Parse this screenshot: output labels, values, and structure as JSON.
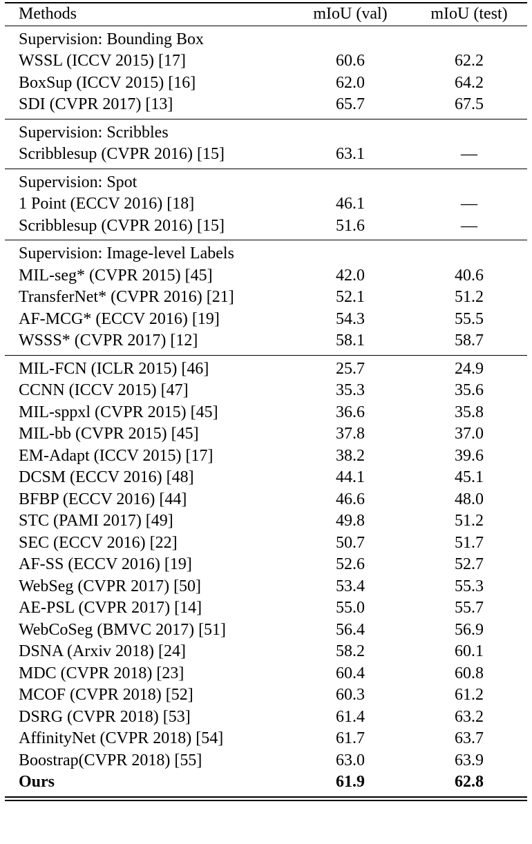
{
  "header": {
    "method": "Methods",
    "val": "mIoU (val)",
    "test": "mIoU (test)"
  },
  "sections": [
    {
      "title": "Supervision: Bounding Box",
      "rows": [
        {
          "method": "WSSL (ICCV 2015) [17]",
          "val": "60.6",
          "test": "62.2"
        },
        {
          "method": "BoxSup (ICCV 2015) [16]",
          "val": "62.0",
          "test": "64.2"
        },
        {
          "method": "SDI (CVPR 2017) [13]",
          "val": "65.7",
          "test": "67.5"
        }
      ]
    },
    {
      "title": "Supervision: Scribbles",
      "rows": [
        {
          "method": "Scribblesup (CVPR 2016) [15]",
          "val": "63.1",
          "test": "—"
        }
      ]
    },
    {
      "title": "Supervision: Spot",
      "rows": [
        {
          "method": "1 Point (ECCV 2016) [18]",
          "val": "46.1",
          "test": "—"
        },
        {
          "method": "Scribblesup (CVPR 2016) [15]",
          "val": "51.6",
          "test": "—"
        }
      ]
    },
    {
      "title": "Supervision: Image-level Labels",
      "rows": [
        {
          "method": "MIL-seg* (CVPR 2015) [45]",
          "val": "42.0",
          "test": "40.6"
        },
        {
          "method": "TransferNet* (CVPR 2016) [21]",
          "val": "52.1",
          "test": "51.2"
        },
        {
          "method": "AF-MCG* (ECCV 2016) [19]",
          "val": "54.3",
          "test": "55.5"
        },
        {
          "method": "WSSS* (CVPR 2017) [12]",
          "val": "58.1",
          "test": "58.7"
        }
      ]
    },
    {
      "title": "",
      "rows": [
        {
          "method": "MIL-FCN (ICLR 2015) [46]",
          "val": "25.7",
          "test": "24.9"
        },
        {
          "method": "CCNN (ICCV 2015) [47]",
          "val": "35.3",
          "test": "35.6"
        },
        {
          "method": "MIL-sppxl (CVPR 2015) [45]",
          "val": "36.6",
          "test": "35.8"
        },
        {
          "method": "MIL-bb (CVPR 2015) [45]",
          "val": "37.8",
          "test": "37.0"
        },
        {
          "method": "EM-Adapt (ICCV 2015) [17]",
          "val": "38.2",
          "test": "39.6"
        },
        {
          "method": "DCSM (ECCV 2016) [48]",
          "val": "44.1",
          "test": "45.1"
        },
        {
          "method": "BFBP (ECCV 2016) [44]",
          "val": "46.6",
          "test": "48.0"
        },
        {
          "method": "STC (PAMI 2017) [49]",
          "val": "49.8",
          "test": "51.2"
        },
        {
          "method": "SEC (ECCV 2016) [22]",
          "val": "50.7",
          "test": "51.7"
        },
        {
          "method": "AF-SS (ECCV 2016) [19]",
          "val": "52.6",
          "test": "52.7"
        },
        {
          "method": "WebSeg (CVPR 2017) [50]",
          "val": "53.4",
          "test": "55.3"
        },
        {
          "method": "AE-PSL (CVPR 2017) [14]",
          "val": "55.0",
          "test": "55.7"
        },
        {
          "method": "WebCoSeg (BMVC 2017) [51]",
          "val": "56.4",
          "test": "56.9"
        },
        {
          "method": "DSNA (Arxiv 2018) [24]",
          "val": "58.2",
          "test": "60.1"
        },
        {
          "method": "MDC (CVPR 2018) [23]",
          "val": "60.4",
          "test": "60.8"
        },
        {
          "method": "MCOF (CVPR 2018) [52]",
          "val": "60.3",
          "test": "61.2"
        },
        {
          "method": "DSRG (CVPR 2018) [53]",
          "val": "61.4",
          "test": "63.2"
        },
        {
          "method": "AffinityNet (CVPR 2018) [54]",
          "val": "61.7",
          "test": "63.7"
        },
        {
          "method": "Boostrap(CVPR 2018) [55]",
          "val": "63.0",
          "test": "63.9"
        },
        {
          "method": "Ours",
          "val": "61.9",
          "test": "62.8",
          "bold": true
        }
      ]
    }
  ]
}
